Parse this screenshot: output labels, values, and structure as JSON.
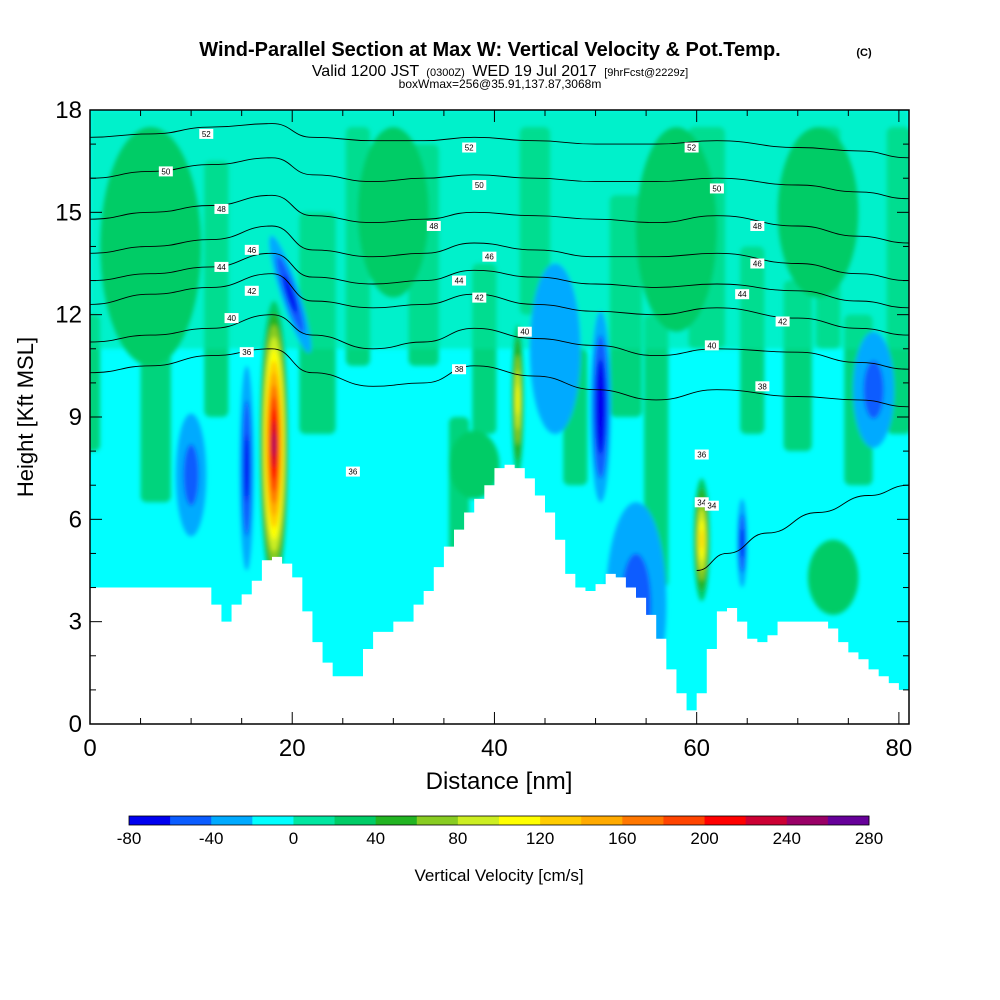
{
  "chart_data": {
    "type": "heatmap",
    "title_main": "Wind-Parallel Section at Max W: Vertical Velocity & Pot.Temp.",
    "title_copyright": "(C)",
    "subtitle_a": "Valid 1200 JST",
    "subtitle_b": "(0300Z)",
    "subtitle_c": "WED 19 Jul 2017",
    "subtitle_d": "[9hrFcst@2229z]",
    "subtitle_line2": "boxWmax=256@35.91,137.87,3068m",
    "xlabel": "Distance [nm]",
    "ylabel": "Height [Kft MSL]",
    "xlim": [
      0,
      81
    ],
    "ylim": [
      0,
      18
    ],
    "x_ticks": [
      0,
      20,
      40,
      60,
      80
    ],
    "y_ticks": [
      0,
      3,
      6,
      9,
      12,
      15,
      18
    ],
    "x_tick_labels": [
      "0",
      "20",
      "40",
      "60",
      "80"
    ],
    "y_tick_labels": [
      "0",
      "3",
      "6",
      "9",
      "12",
      "15",
      "18"
    ],
    "colorbar": {
      "label": "Vertical Velocity [cm/s]",
      "min": -80,
      "max": 280,
      "step": 20,
      "tick_values": [
        -80,
        -40,
        0,
        40,
        80,
        120,
        160,
        200,
        240,
        280
      ],
      "tick_labels": [
        "-80",
        "-40",
        "0",
        "40",
        "80",
        "120",
        "160",
        "200",
        "240",
        "280"
      ],
      "colors": [
        "#0000f0",
        "#0a5cff",
        "#00aaff",
        "#00ffff",
        "#00e6a0",
        "#00cc66",
        "#22b422",
        "#88cc22",
        "#ccee22",
        "#ffff00",
        "#ffcc00",
        "#ffaa00",
        "#ff7700",
        "#ff4400",
        "#ff0000",
        "#cc0033",
        "#990066",
        "#660099"
      ]
    },
    "background_color": "#00ffff",
    "terrain": [
      [
        0,
        4
      ],
      [
        10,
        4
      ],
      [
        12,
        3.5
      ],
      [
        13,
        3
      ],
      [
        14,
        3.5
      ],
      [
        15,
        3.8
      ],
      [
        16,
        4.2
      ],
      [
        17,
        4.8
      ],
      [
        18,
        4.9
      ],
      [
        19,
        4.7
      ],
      [
        20,
        4.3
      ],
      [
        21,
        3.3
      ],
      [
        22,
        2.4
      ],
      [
        23,
        1.8
      ],
      [
        24,
        1.4
      ],
      [
        26,
        1.4
      ],
      [
        27,
        2.2
      ],
      [
        28,
        2.7
      ],
      [
        30,
        3
      ],
      [
        32,
        3.5
      ],
      [
        33,
        3.9
      ],
      [
        34,
        4.6
      ],
      [
        35,
        5.2
      ],
      [
        36,
        5.7
      ],
      [
        37,
        6.2
      ],
      [
        38,
        6.6
      ],
      [
        39,
        7.0
      ],
      [
        40,
        7.5
      ],
      [
        41,
        7.6
      ],
      [
        42,
        7.5
      ],
      [
        43,
        7.2
      ],
      [
        44,
        6.7
      ],
      [
        45,
        6.2
      ],
      [
        46,
        5.4
      ],
      [
        47,
        4.4
      ],
      [
        48,
        4.0
      ],
      [
        49,
        3.9
      ],
      [
        50,
        4.1
      ],
      [
        51,
        4.4
      ],
      [
        52,
        4.3
      ],
      [
        53,
        4.0
      ],
      [
        54,
        3.7
      ],
      [
        55,
        3.2
      ],
      [
        56,
        2.5
      ],
      [
        57,
        1.6
      ],
      [
        58,
        0.9
      ],
      [
        59,
        0.4
      ],
      [
        60,
        0.9
      ],
      [
        61,
        2.2
      ],
      [
        62,
        3.3
      ],
      [
        63,
        3.4
      ],
      [
        64,
        3.0
      ],
      [
        65,
        2.5
      ],
      [
        66,
        2.4
      ],
      [
        67,
        2.6
      ],
      [
        68,
        3.0
      ],
      [
        70,
        3.0
      ],
      [
        72,
        3.0
      ],
      [
        73,
        2.8
      ],
      [
        74,
        2.4
      ],
      [
        75,
        2.1
      ],
      [
        76,
        1.9
      ],
      [
        77,
        1.6
      ],
      [
        78,
        1.4
      ],
      [
        79,
        1.2
      ],
      [
        80,
        1.0
      ],
      [
        81,
        1.0
      ]
    ],
    "velocity_features": [
      {
        "x": 18.2,
        "y": 8.2,
        "rx": 1.4,
        "ry": 4.2,
        "w": 250,
        "tilt": 0
      },
      {
        "x": 19.8,
        "y": 12.6,
        "rx": 0.9,
        "ry": 1.8,
        "w": -70,
        "tilt": -18
      },
      {
        "x": 15.5,
        "y": 7.5,
        "rx": 0.7,
        "ry": 3.0,
        "w": -60,
        "tilt": 0
      },
      {
        "x": 42.3,
        "y": 9.5,
        "rx": 0.6,
        "ry": 2.2,
        "w": 100,
        "tilt": 0
      },
      {
        "x": 50.5,
        "y": 9.3,
        "rx": 1.0,
        "ry": 2.8,
        "w": -80,
        "tilt": 0
      },
      {
        "x": 60.5,
        "y": 5.4,
        "rx": 0.8,
        "ry": 1.8,
        "w": 130,
        "tilt": 0
      },
      {
        "x": 64.5,
        "y": 5.3,
        "rx": 0.5,
        "ry": 1.3,
        "w": -70,
        "tilt": 0
      },
      {
        "x": 54.0,
        "y": 3.5,
        "rx": 3.0,
        "ry": 3.0,
        "w": -50,
        "tilt": 0
      },
      {
        "x": 10.0,
        "y": 7.3,
        "rx": 1.5,
        "ry": 1.8,
        "w": -50,
        "tilt": 0
      },
      {
        "x": 77.5,
        "y": 9.8,
        "rx": 2.0,
        "ry": 1.7,
        "w": -45,
        "tilt": 0
      },
      {
        "x": 73.5,
        "y": 4.3,
        "rx": 2.5,
        "ry": 1.1,
        "w": 35,
        "tilt": 0
      },
      {
        "x": 46.0,
        "y": 11.0,
        "rx": 2.5,
        "ry": 2.5,
        "w": -35,
        "tilt": 0
      },
      {
        "x": 38.0,
        "y": 7.6,
        "rx": 2.5,
        "ry": 1.0,
        "w": 35,
        "tilt": 0
      },
      {
        "x": 30.0,
        "y": 15.0,
        "rx": 3.5,
        "ry": 2.5,
        "w": 30,
        "tilt": 0
      },
      {
        "x": 6.0,
        "y": 14.0,
        "rx": 5.0,
        "ry": 3.5,
        "w": 30,
        "tilt": 0
      },
      {
        "x": 58.0,
        "y": 14.5,
        "rx": 4.0,
        "ry": 3.0,
        "w": 25,
        "tilt": 0
      },
      {
        "x": 72.0,
        "y": 15.0,
        "rx": 4.0,
        "ry": 2.5,
        "w": 25,
        "tilt": 0
      }
    ],
    "theta_contours": [
      {
        "value": 34,
        "label": "34",
        "pts": [
          [
            60,
            4.5
          ],
          [
            63,
            5.0
          ],
          [
            67,
            5.6
          ],
          [
            72,
            6.2
          ],
          [
            77,
            6.7
          ],
          [
            81,
            7.0
          ]
        ],
        "label_at": [
          60.5,
          6.5
        ]
      },
      {
        "value": 36,
        "label": "36",
        "pts": [
          [
            0,
            10.3
          ],
          [
            6,
            10.5
          ],
          [
            12,
            10.8
          ],
          [
            18,
            11.0
          ],
          [
            22,
            10.3
          ],
          [
            28,
            9.9
          ],
          [
            33,
            10.0
          ],
          [
            38,
            10.5
          ],
          [
            44,
            10.2
          ],
          [
            50,
            9.8
          ],
          [
            56,
            9.5
          ],
          [
            62,
            9.8
          ],
          [
            70,
            9.6
          ],
          [
            76,
            9.5
          ],
          [
            81,
            9.3
          ]
        ],
        "label_at": [
          15.5,
          10.9
        ]
      },
      {
        "value": 40,
        "label": "40",
        "pts": [
          [
            0,
            11.2
          ],
          [
            6,
            11.4
          ],
          [
            12,
            11.6
          ],
          [
            18,
            12.0
          ],
          [
            22,
            11.4
          ],
          [
            28,
            11.0
          ],
          [
            33,
            11.2
          ],
          [
            38,
            11.6
          ],
          [
            44,
            11.3
          ],
          [
            50,
            11.1
          ],
          [
            56,
            10.8
          ],
          [
            62,
            11.0
          ],
          [
            70,
            10.9
          ],
          [
            76,
            10.6
          ],
          [
            81,
            10.4
          ]
        ],
        "label_at": [
          14.0,
          11.9
        ]
      },
      {
        "value": 42,
        "label": "42",
        "pts": [
          [
            0,
            12.3
          ],
          [
            6,
            12.6
          ],
          [
            12,
            12.8
          ],
          [
            18,
            13.2
          ],
          [
            22,
            12.4
          ],
          [
            28,
            12.2
          ],
          [
            33,
            12.3
          ],
          [
            38,
            12.6
          ],
          [
            44,
            12.3
          ],
          [
            50,
            12.1
          ],
          [
            56,
            12.0
          ],
          [
            62,
            12.2
          ],
          [
            70,
            11.9
          ],
          [
            76,
            11.6
          ],
          [
            81,
            11.4
          ]
        ],
        "label_at": [
          16.0,
          12.7
        ]
      },
      {
        "value": 44,
        "label": "44",
        "pts": [
          [
            0,
            13.0
          ],
          [
            6,
            13.2
          ],
          [
            12,
            13.4
          ],
          [
            18,
            13.8
          ],
          [
            22,
            13.1
          ],
          [
            28,
            12.9
          ],
          [
            33,
            13.0
          ],
          [
            38,
            13.3
          ],
          [
            44,
            13.1
          ],
          [
            50,
            12.9
          ],
          [
            56,
            12.8
          ],
          [
            62,
            12.9
          ],
          [
            70,
            12.7
          ],
          [
            76,
            12.4
          ],
          [
            81,
            12.2
          ]
        ],
        "label_at": [
          13.0,
          13.4
        ]
      },
      {
        "value": 46,
        "label": "46",
        "pts": [
          [
            0,
            13.8
          ],
          [
            6,
            14.0
          ],
          [
            12,
            14.2
          ],
          [
            18,
            14.6
          ],
          [
            22,
            13.9
          ],
          [
            28,
            13.7
          ],
          [
            33,
            13.8
          ],
          [
            38,
            14.1
          ],
          [
            44,
            13.9
          ],
          [
            50,
            13.7
          ],
          [
            56,
            13.7
          ],
          [
            62,
            13.8
          ],
          [
            70,
            13.5
          ],
          [
            76,
            13.2
          ],
          [
            81,
            13.0
          ]
        ],
        "label_at": [
          16.0,
          13.9
        ]
      },
      {
        "value": 48,
        "label": "48",
        "pts": [
          [
            0,
            14.8
          ],
          [
            6,
            15.0
          ],
          [
            12,
            15.2
          ],
          [
            18,
            15.5
          ],
          [
            22,
            14.9
          ],
          [
            28,
            14.7
          ],
          [
            33,
            14.8
          ],
          [
            38,
            15.0
          ],
          [
            44,
            14.9
          ],
          [
            50,
            14.8
          ],
          [
            56,
            14.7
          ],
          [
            62,
            14.9
          ],
          [
            70,
            14.6
          ],
          [
            76,
            14.3
          ],
          [
            81,
            14.1
          ]
        ],
        "label_at": [
          13.0,
          15.1
        ]
      },
      {
        "value": 50,
        "label": "50",
        "pts": [
          [
            0,
            16.0
          ],
          [
            6,
            16.2
          ],
          [
            12,
            16.4
          ],
          [
            18,
            16.6
          ],
          [
            22,
            16.1
          ],
          [
            28,
            15.9
          ],
          [
            33,
            16.0
          ],
          [
            38,
            16.1
          ],
          [
            44,
            16.0
          ],
          [
            50,
            15.9
          ],
          [
            56,
            15.9
          ],
          [
            62,
            16.0
          ],
          [
            70,
            15.8
          ],
          [
            76,
            15.6
          ],
          [
            81,
            15.4
          ]
        ],
        "label_at": [
          7.5,
          16.2
        ]
      },
      {
        "value": 52,
        "label": "52",
        "pts": [
          [
            0,
            17.2
          ],
          [
            6,
            17.3
          ],
          [
            12,
            17.5
          ],
          [
            18,
            17.6
          ],
          [
            22,
            17.2
          ],
          [
            28,
            17.1
          ],
          [
            33,
            17.1
          ],
          [
            38,
            17.2
          ],
          [
            44,
            17.1
          ],
          [
            50,
            17.0
          ],
          [
            56,
            17.0
          ],
          [
            62,
            17.1
          ],
          [
            70,
            16.9
          ],
          [
            76,
            16.8
          ],
          [
            81,
            16.6
          ]
        ],
        "label_at": [
          11.5,
          17.3
        ]
      }
    ]
  }
}
